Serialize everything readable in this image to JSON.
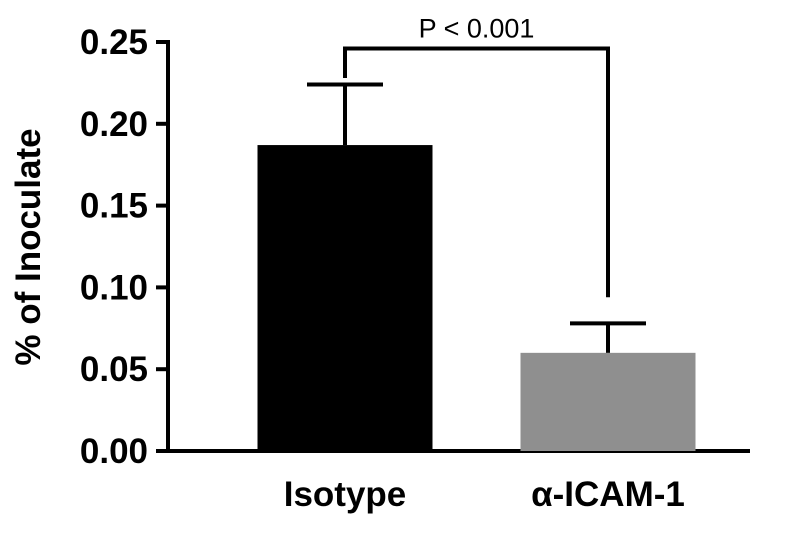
{
  "chart_data": {
    "type": "bar",
    "title": "",
    "xlabel": "",
    "ylabel": "% of Inoculate",
    "ylim": [
      0,
      0.25
    ],
    "yticks": [
      "0.00",
      "0.05",
      "0.10",
      "0.15",
      "0.20",
      "0.25"
    ],
    "categories": [
      "Isotype",
      "α-ICAM-1"
    ],
    "values": [
      0.187,
      0.06
    ],
    "error_upper": [
      0.224,
      0.078
    ],
    "bar_colors": [
      "#000000",
      "#8f8f8f"
    ],
    "grid": false,
    "legend": "none",
    "significance": {
      "between": [
        0,
        1
      ],
      "label": "P < 0.001",
      "bracket_top": 0.246,
      "left_drop_to": 0.228,
      "right_drop_to": 0.094
    }
  }
}
